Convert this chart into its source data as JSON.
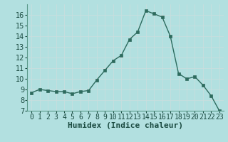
{
  "x": [
    0,
    1,
    2,
    3,
    4,
    5,
    6,
    7,
    8,
    9,
    10,
    11,
    12,
    13,
    14,
    15,
    16,
    17,
    18,
    19,
    20,
    21,
    22,
    23
  ],
  "y": [
    8.7,
    9.0,
    8.9,
    8.8,
    8.8,
    8.6,
    8.8,
    8.9,
    9.9,
    10.8,
    11.7,
    12.2,
    13.7,
    14.4,
    16.4,
    16.1,
    15.8,
    14.0,
    10.5,
    10.0,
    10.2,
    9.4,
    8.4,
    7.0
  ],
  "xlabel": "Humidex (Indice chaleur)",
  "bg_color": "#b2e0e0",
  "plot_bg_color": "#b2e0e0",
  "line_color": "#2e6b5e",
  "marker_color": "#2e6b5e",
  "grid_color": "#c8dede",
  "ylim": [
    7,
    17
  ],
  "xlim": [
    -0.5,
    23.5
  ],
  "yticks": [
    7,
    8,
    9,
    10,
    11,
    12,
    13,
    14,
    15,
    16
  ],
  "xtick_labels": [
    "0",
    "1",
    "2",
    "3",
    "4",
    "5",
    "6",
    "7",
    "8",
    "9",
    "10",
    "11",
    "12",
    "13",
    "14",
    "15",
    "16",
    "17",
    "18",
    "19",
    "20",
    "21",
    "22",
    "23"
  ],
  "tick_fontsize": 7,
  "xlabel_fontsize": 8
}
